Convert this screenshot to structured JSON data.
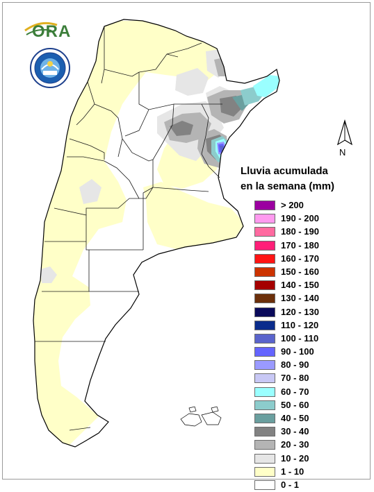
{
  "logos": {
    "ora": {
      "text": "ORA",
      "color": "#3c7e3a",
      "arc_color": "#e0b020"
    },
    "seal": {
      "name": "smn-seal",
      "color": "#1c3f8c"
    }
  },
  "north_arrow": {
    "label": "N"
  },
  "legend": {
    "title_line1": "Lluvia acumulada",
    "title_line2": "en la semana (mm)",
    "items": [
      {
        "label": "> 200",
        "color": "#9b00a0"
      },
      {
        "label": "190 - 200",
        "color": "#ff9aef"
      },
      {
        "label": "180 - 190",
        "color": "#ff6aa0"
      },
      {
        "label": "170 - 180",
        "color": "#ff1f78"
      },
      {
        "label": "160 - 170",
        "color": "#ff1414"
      },
      {
        "label": "150 - 160",
        "color": "#cc3300"
      },
      {
        "label": "140 - 150",
        "color": "#a50000"
      },
      {
        "label": "130 - 140",
        "color": "#6b2f0a"
      },
      {
        "label": "120 - 130",
        "color": "#0a0a5a"
      },
      {
        "label": "110 - 120",
        "color": "#0a2c8c"
      },
      {
        "label": "100 - 110",
        "color": "#5a64cc"
      },
      {
        "label": "90 - 100",
        "color": "#6464ff"
      },
      {
        "label": "80 - 90",
        "color": "#9a9aff"
      },
      {
        "label": "70 - 80",
        "color": "#c8c8f5"
      },
      {
        "label": "60 - 70",
        "color": "#9affff"
      },
      {
        "label": "50 - 60",
        "color": "#8ccccc"
      },
      {
        "label": "40 - 50",
        "color": "#6a9f9f"
      },
      {
        "label": "30 - 40",
        "color": "#828282"
      },
      {
        "label": "20 - 30",
        "color": "#b4b4b4"
      },
      {
        "label": "10 - 20",
        "color": "#e6e6e6"
      },
      {
        "label": "1 - 10",
        "color": "#ffffc8"
      },
      {
        "label": "0 - 1",
        "color": "#ffffff"
      }
    ]
  }
}
